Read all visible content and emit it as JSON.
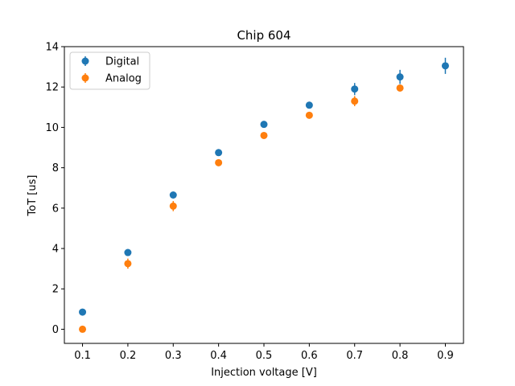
{
  "chart_data": {
    "type": "scatter",
    "title": "Chip 604",
    "xlabel": "Injection voltage [V]",
    "ylabel": "ToT [us]",
    "xlim": [
      0.06,
      0.94
    ],
    "ylim": [
      -0.7,
      14.0
    ],
    "xticks": [
      0.1,
      0.2,
      0.3,
      0.4,
      0.5,
      0.6,
      0.7,
      0.8,
      0.9
    ],
    "xtick_labels": [
      "0.1",
      "0.2",
      "0.3",
      "0.4",
      "0.5",
      "0.6",
      "0.7",
      "0.8",
      "0.9"
    ],
    "yticks": [
      0,
      2,
      4,
      6,
      8,
      10,
      12,
      14
    ],
    "ytick_labels": [
      "0",
      "2",
      "4",
      "6",
      "8",
      "10",
      "12",
      "14"
    ],
    "grid": false,
    "legend_position": "top-left",
    "series": [
      {
        "name": "Digital",
        "color": "#1f77b4",
        "x": [
          0.1,
          0.2,
          0.3,
          0.4,
          0.5,
          0.6,
          0.7,
          0.8,
          0.9
        ],
        "y": [
          0.85,
          3.8,
          6.65,
          8.75,
          10.15,
          11.1,
          11.9,
          12.5,
          13.05
        ],
        "yerr": [
          0.05,
          0.1,
          0.12,
          0.12,
          0.12,
          0.12,
          0.3,
          0.35,
          0.4
        ]
      },
      {
        "name": "Analog",
        "color": "#ff7f0e",
        "x": [
          0.1,
          0.2,
          0.3,
          0.4,
          0.5,
          0.6,
          0.7,
          0.8
        ],
        "y": [
          0.0,
          3.25,
          6.1,
          8.25,
          9.6,
          10.6,
          11.3,
          11.95
        ],
        "yerr": [
          0.05,
          0.25,
          0.25,
          0.15,
          0.1,
          0.1,
          0.25,
          0.15
        ]
      }
    ]
  }
}
